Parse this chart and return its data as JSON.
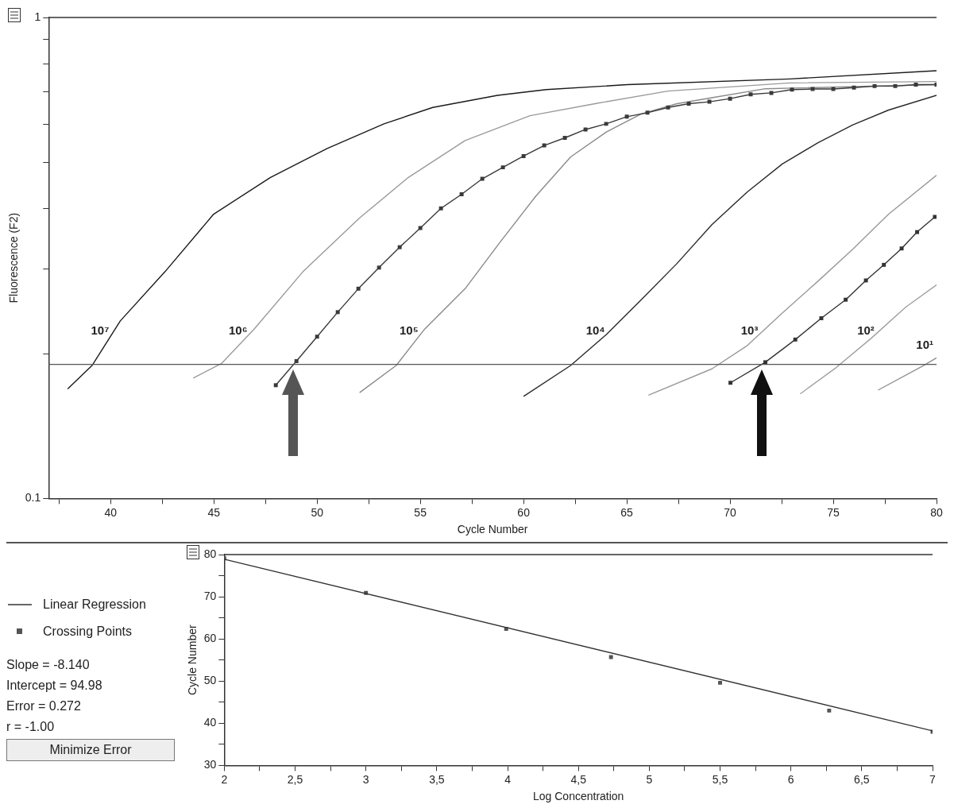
{
  "chart_data": [
    {
      "type": "line",
      "xlabel": "Cycle Number",
      "ylabel": "Fluorescence (F2)",
      "log": "y",
      "grid": false,
      "legend": false,
      "marker": "none",
      "xlim": [
        37,
        80
      ],
      "ylim": [
        0.1,
        1
      ],
      "xticks": [
        {
          "value": 37.5,
          "label": null
        },
        40,
        {
          "value": 42.5,
          "label": null
        },
        45,
        {
          "value": 47.5,
          "label": null
        },
        50,
        {
          "value": 52.5,
          "label": null
        },
        55,
        {
          "value": 57.5,
          "label": null
        },
        60,
        {
          "value": 62.5,
          "label": null
        },
        65,
        {
          "value": 67.5,
          "label": null
        },
        70,
        {
          "value": 72.5,
          "label": null
        },
        75,
        {
          "value": 77.5,
          "label": null
        },
        80
      ],
      "yticks": [
        0.1,
        {
          "value": 0.2,
          "label": null
        },
        {
          "value": 0.3,
          "label": null
        },
        {
          "value": 0.4,
          "label": null
        },
        {
          "value": 0.5,
          "label": null
        },
        {
          "value": 0.6,
          "label": null
        },
        {
          "value": 0.7,
          "label": null
        },
        {
          "value": 0.8,
          "label": null
        },
        {
          "value": 0.9,
          "label": null
        },
        1
      ],
      "ref_lines": [
        {
          "axis": "y",
          "value": 0.19,
          "color": "#555555"
        }
      ],
      "series": [
        {
          "name": "10⁷",
          "color": "#1a1a1a",
          "x": [
            37.92,
            39.1,
            40.47,
            42.63,
            44.99,
            47.74,
            50.49,
            53.24,
            55.6,
            58.74,
            61.1,
            65.03,
            72.89,
            80
          ],
          "values": [
            0.169,
            0.189,
            0.234,
            0.296,
            0.39,
            0.465,
            0.534,
            0.601,
            0.65,
            0.689,
            0.708,
            0.725,
            0.745,
            0.775
          ]
        },
        {
          "name": "10⁶",
          "color": "#9a9a9a",
          "x": [
            44,
            45.38,
            46.95,
            49.31,
            52.06,
            54.42,
            57.17,
            60.31,
            63.46,
            66.99,
            72.89,
            80
          ],
          "values": [
            0.178,
            0.191,
            0.225,
            0.296,
            0.383,
            0.465,
            0.555,
            0.625,
            0.662,
            0.703,
            0.731,
            0.736
          ]
        },
        {
          "color": "#3a3a3a",
          "marker": "square",
          "x": [
            48,
            49,
            50,
            51,
            52,
            53,
            54,
            55,
            56,
            57,
            58,
            59,
            60,
            61,
            62,
            63,
            64,
            65,
            66,
            67,
            68,
            69,
            70,
            71,
            72,
            73,
            74,
            75,
            76,
            77,
            78,
            79,
            80
          ],
          "values": [
            0.172,
            0.193,
            0.217,
            0.244,
            0.273,
            0.302,
            0.333,
            0.365,
            0.401,
            0.429,
            0.462,
            0.488,
            0.515,
            0.542,
            0.562,
            0.585,
            0.601,
            0.622,
            0.634,
            0.65,
            0.662,
            0.668,
            0.678,
            0.692,
            0.697,
            0.708,
            0.71,
            0.71,
            0.715,
            0.72,
            0.72,
            0.725,
            0.725
          ]
        },
        {
          "name": "10⁵",
          "color": "#8a8a8a",
          "x": [
            52.06,
            53.83,
            55.21,
            57.17,
            58.86,
            60.59,
            62.28,
            64.01,
            65.7,
            67.43,
            69.12,
            71.71,
            80
          ],
          "values": [
            0.166,
            0.189,
            0.225,
            0.273,
            0.341,
            0.425,
            0.513,
            0.578,
            0.63,
            0.662,
            0.681,
            0.711,
            0.725
          ]
        },
        {
          "name": "10⁴",
          "color": "#2a2a2a",
          "x": [
            60,
            62.28,
            64,
            65.7,
            67.43,
            69.12,
            70.84,
            72.53,
            74.26,
            75.95,
            77.68,
            80
          ],
          "values": [
            0.163,
            0.189,
            0.219,
            0.259,
            0.308,
            0.371,
            0.434,
            0.496,
            0.549,
            0.598,
            0.642,
            0.689
          ]
        },
        {
          "name": "10³",
          "color": "#999999",
          "x": [
            66.05,
            69.12,
            70.84,
            72.53,
            74.26,
            75.95,
            77.68,
            80
          ],
          "values": [
            0.164,
            0.186,
            0.208,
            0.243,
            0.283,
            0.33,
            0.39,
            0.47
          ]
        },
        {
          "color": "#333333",
          "marker": "square",
          "x": [
            70.02,
            71.71,
            73.16,
            74.42,
            75.6,
            76.58,
            77.45,
            78.31,
            79.06,
            79.92
          ],
          "values": [
            0.174,
            0.192,
            0.214,
            0.237,
            0.259,
            0.284,
            0.306,
            0.331,
            0.358,
            0.385
          ]
        },
        {
          "name": "10²",
          "color": "#a0a0a0",
          "x": [
            73.4,
            75.13,
            76.82,
            78.51,
            80
          ],
          "values": [
            0.165,
            0.187,
            0.215,
            0.25,
            0.278
          ]
        },
        {
          "name": "10¹",
          "color": "#909090",
          "x": [
            77.17,
            79.37,
            80
          ],
          "values": [
            0.168,
            0.189,
            0.196
          ]
        }
      ]
    },
    {
      "type": "scatter",
      "xlabel": "Log Concentration",
      "ylabel": "Cycle Number",
      "grid": false,
      "legend": "left",
      "xlim": [
        2,
        7
      ],
      "ylim": [
        30,
        80
      ],
      "xticks": [
        2,
        {
          "value": 2.25,
          "label": null
        },
        {
          "value": 2.5,
          "label": "2,5"
        },
        {
          "value": 2.75,
          "label": null
        },
        3,
        {
          "value": 3.25,
          "label": null
        },
        {
          "value": 3.5,
          "label": "3,5"
        },
        {
          "value": 3.75,
          "label": null
        },
        4,
        {
          "value": 4.25,
          "label": null
        },
        {
          "value": 4.5,
          "label": "4,5"
        },
        {
          "value": 4.75,
          "label": null
        },
        5,
        {
          "value": 5.25,
          "label": null
        },
        {
          "value": 5.5,
          "label": "5,5"
        },
        {
          "value": 5.75,
          "label": null
        },
        6,
        {
          "value": 6.25,
          "label": null
        },
        {
          "value": 6.5,
          "label": "6,5"
        },
        {
          "value": 6.75,
          "label": null
        },
        7
      ],
      "yticks": [
        30,
        {
          "value": 35,
          "label": null
        },
        40,
        {
          "value": 45,
          "label": null
        },
        50,
        {
          "value": 55,
          "label": null
        },
        60,
        {
          "value": 65,
          "label": null
        },
        70,
        {
          "value": 75,
          "label": null
        },
        80
      ],
      "annotations": [
        "Slope = -8.140",
        "Intercept = 94.98",
        "Error = 0.272",
        "r = -1.00",
        "Minimize Error"
      ],
      "series": [
        {
          "name": "Linear Regression",
          "type": "line",
          "marker": "none",
          "color": "#333333",
          "x": [
            2,
            7
          ],
          "values": [
            78.9,
            38.2
          ]
        },
        {
          "name": "Crossing Points",
          "marker": "square",
          "color": "#555555",
          "x": [
            2,
            3,
            3.99,
            4.73,
            5.5,
            6.27,
            7
          ],
          "values": [
            79.1,
            70.9,
            62.4,
            55.7,
            49.6,
            43.0,
            38.0
          ]
        }
      ]
    }
  ]
}
